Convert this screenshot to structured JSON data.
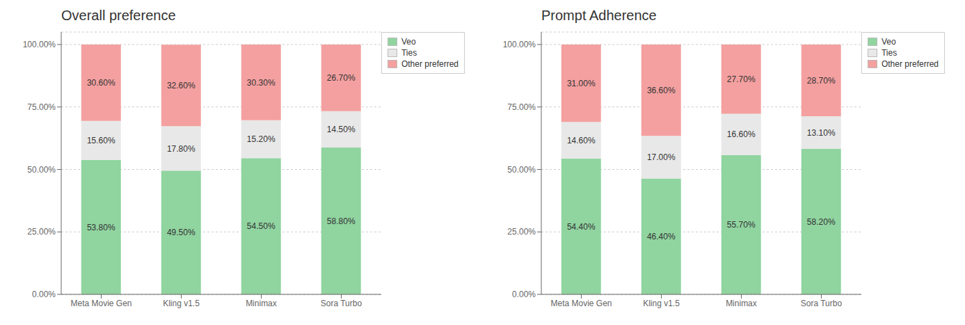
{
  "chart_data": [
    {
      "type": "bar",
      "title": "Overall preference",
      "categories": [
        "Meta Movie Gen",
        "Kling v1.5",
        "Minimax",
        "Sora Turbo"
      ],
      "stacked": true,
      "data_labels": true,
      "grid": true,
      "legend": "upper right",
      "ylim": [
        0,
        105
      ],
      "yticks": [
        {
          "value": 0,
          "label": "0.00%"
        },
        {
          "value": 25,
          "label": "25.00%"
        },
        {
          "value": 50,
          "label": "50.00%"
        },
        {
          "value": 75,
          "label": "75.00%"
        },
        {
          "value": 100,
          "label": "100.00%"
        }
      ],
      "series": [
        {
          "name": "Veo",
          "color": "#90d4a0",
          "values": [
            53.8,
            49.5,
            54.5,
            58.8
          ],
          "value_labels": [
            "53.80%",
            "49.50%",
            "54.50%",
            "58.80%"
          ]
        },
        {
          "name": "Ties",
          "color": "#e8e8e8",
          "values": [
            15.6,
            17.8,
            15.2,
            14.5
          ],
          "value_labels": [
            "15.60%",
            "17.80%",
            "15.20%",
            "14.50%"
          ]
        },
        {
          "name": "Other preferred",
          "color": "#f4a0a0",
          "values": [
            30.6,
            32.6,
            30.3,
            26.7
          ],
          "value_labels": [
            "30.60%",
            "32.60%",
            "30.30%",
            "26.70%"
          ]
        }
      ]
    },
    {
      "type": "bar",
      "title": "Prompt Adherence",
      "categories": [
        "Meta Movie Gen",
        "Kling v1.5",
        "Minimax",
        "Sora Turbo"
      ],
      "stacked": true,
      "data_labels": true,
      "grid": true,
      "legend": "upper right",
      "ylim": [
        0,
        105
      ],
      "yticks": [
        {
          "value": 0,
          "label": "0.00%"
        },
        {
          "value": 25,
          "label": "25.00%"
        },
        {
          "value": 50,
          "label": "50.00%"
        },
        {
          "value": 75,
          "label": "75.00%"
        },
        {
          "value": 100,
          "label": "100.00%"
        }
      ],
      "series": [
        {
          "name": "Veo",
          "color": "#90d4a0",
          "values": [
            54.4,
            46.4,
            55.7,
            58.2
          ],
          "value_labels": [
            "54.40%",
            "46.40%",
            "55.70%",
            "58.20%"
          ]
        },
        {
          "name": "Ties",
          "color": "#e8e8e8",
          "values": [
            14.6,
            17.0,
            16.6,
            13.1
          ],
          "value_labels": [
            "14.60%",
            "17.00%",
            "16.60%",
            "13.10%"
          ]
        },
        {
          "name": "Other preferred",
          "color": "#f4a0a0",
          "values": [
            31.0,
            36.6,
            27.7,
            28.7
          ],
          "value_labels": [
            "31.00%",
            "36.60%",
            "27.70%",
            "28.70%"
          ]
        }
      ]
    }
  ]
}
